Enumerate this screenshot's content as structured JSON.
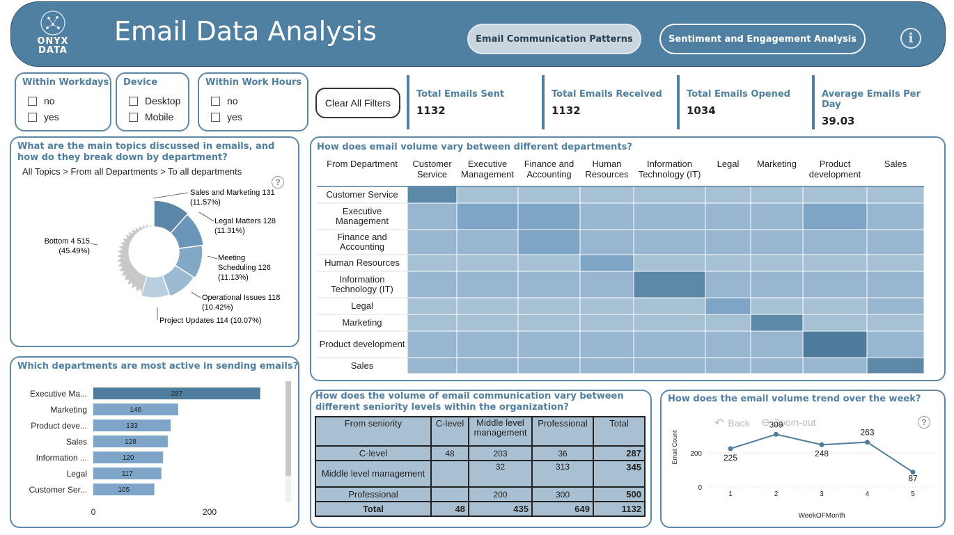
{
  "header": {
    "logo_line1": "ONYX",
    "logo_line2": "DATA",
    "title": "Email Data Analysis",
    "nav": [
      {
        "label": "Email Communication Patterns",
        "active": true
      },
      {
        "label": "Sentiment and Engagement Analysis",
        "active": false
      }
    ],
    "info_icon": "i"
  },
  "filters": {
    "workdays": {
      "title": "Within Workdays",
      "options": [
        "no",
        "yes"
      ]
    },
    "device": {
      "title": "Device",
      "options": [
        "Desktop",
        "Mobile"
      ]
    },
    "workhours": {
      "title": "Within Work Hours",
      "options": [
        "no",
        "yes"
      ]
    },
    "clear_label": "Clear All Filters"
  },
  "kpis": [
    {
      "label": "Total Emails Sent",
      "value": "1132"
    },
    {
      "label": "Total Emails Received",
      "value": "1132"
    },
    {
      "label": "Total Emails Opened",
      "value": "1034"
    },
    {
      "label": "Average Emails Per Day",
      "value": "39.03"
    }
  ],
  "topics": {
    "title": "What are the main topics discussed in emails, and how do they break down by department?",
    "breadcrumb": "All Topics > From all Departments > To all departments",
    "help": "?",
    "labels": [
      "Sales and Marketing 131",
      "(11.57%)",
      "Legal Matters 128",
      "(11.31%)",
      "Meeting",
      "Scheduling 126",
      "(11.13%)",
      "Operational Issues 118",
      "(10.42%)",
      "Project Updates 114 (10.07%)",
      "Bottom 4 515",
      "(45.49%)"
    ],
    "chart_data": {
      "type": "pie",
      "categories": [
        "Sales and Marketing",
        "Legal Matters",
        "Meeting Scheduling",
        "Operational Issues",
        "Project Updates",
        "Bottom 4"
      ],
      "values": [
        131,
        128,
        126,
        118,
        114,
        515
      ],
      "percent": [
        11.57,
        11.31,
        11.13,
        10.42,
        10.07,
        45.49
      ],
      "colors": [
        "#5b86a7",
        "#6b96b9",
        "#82a8c6",
        "#9ab9d2",
        "#b9cfe0",
        "#c8c8c8"
      ]
    }
  },
  "departments": {
    "title": "Which departments are most active in sending emails?",
    "chart_data": {
      "type": "bar",
      "categories": [
        "Executive Ma...",
        "Marketing",
        "Product deve...",
        "Sales",
        "Information ...",
        "Legal",
        "Customer Ser..."
      ],
      "values": [
        287,
        146,
        133,
        128,
        120,
        117,
        105
      ],
      "xticks": [
        "0",
        "200"
      ],
      "xlim": [
        0,
        320
      ]
    }
  },
  "heatmap": {
    "title": "How does email volume vary between different departments?",
    "corner": "From Department",
    "columns": [
      "Customer Service",
      "Executive Management",
      "Finance and Accounting",
      "Human Resources",
      "Information Technology (IT)",
      "Legal",
      "Marketing",
      "Product development",
      "Sales"
    ],
    "rows": [
      "Customer Service",
      "Executive Management",
      "Finance and Accounting",
      "Human Resources",
      "Information Technology (IT)",
      "Legal",
      "Marketing",
      "Product development",
      "Sales"
    ],
    "chart_data": {
      "type": "heatmap",
      "levels": [
        [
          4,
          1,
          1,
          1,
          1,
          1,
          1,
          1,
          1
        ],
        [
          2,
          3,
          3,
          2,
          2,
          2,
          2,
          3,
          2
        ],
        [
          2,
          2,
          3,
          2,
          2,
          2,
          2,
          2,
          2
        ],
        [
          1,
          1,
          1,
          3,
          1,
          1,
          1,
          1,
          1
        ],
        [
          2,
          2,
          2,
          2,
          4,
          2,
          2,
          2,
          2
        ],
        [
          1,
          1,
          1,
          1,
          1,
          3,
          1,
          1,
          2
        ],
        [
          1,
          1,
          1,
          1,
          1,
          1,
          4,
          1,
          1
        ],
        [
          2,
          2,
          2,
          2,
          2,
          2,
          2,
          5,
          2
        ],
        [
          2,
          2,
          2,
          2,
          2,
          2,
          2,
          2,
          4
        ]
      ],
      "palette": [
        "#c2d4e2",
        "#a6c0d4",
        "#98b6cf",
        "#7ea5c6",
        "#5e88a8",
        "#4f7b9c"
      ]
    }
  },
  "seniority": {
    "title": "How does the volume of email communication vary between different seniority levels within the organization?",
    "headers": [
      "From seniority",
      "C-level",
      "Middle level management",
      "Professional",
      "Total"
    ],
    "rows": [
      [
        "C-level",
        "48",
        "203",
        "36",
        "287"
      ],
      [
        "Middle level management",
        "",
        "32",
        "313",
        "345"
      ],
      [
        "Professional",
        "",
        "200",
        "300",
        "500"
      ],
      [
        "Total",
        "48",
        "435",
        "649",
        "1132"
      ]
    ]
  },
  "trend": {
    "title": "How does the email volume trend over the week?",
    "back_label": "Back",
    "zoom_label": "Zoom-out",
    "help": "?",
    "chart_data": {
      "type": "line",
      "x": [
        1,
        2,
        3,
        4,
        5
      ],
      "values": [
        225,
        309,
        248,
        263,
        87
      ],
      "xlabel": "WeekOFMonth",
      "ylabel": "Email Count",
      "yticks": [
        "0",
        "200"
      ],
      "ylim": [
        0,
        330
      ]
    }
  }
}
